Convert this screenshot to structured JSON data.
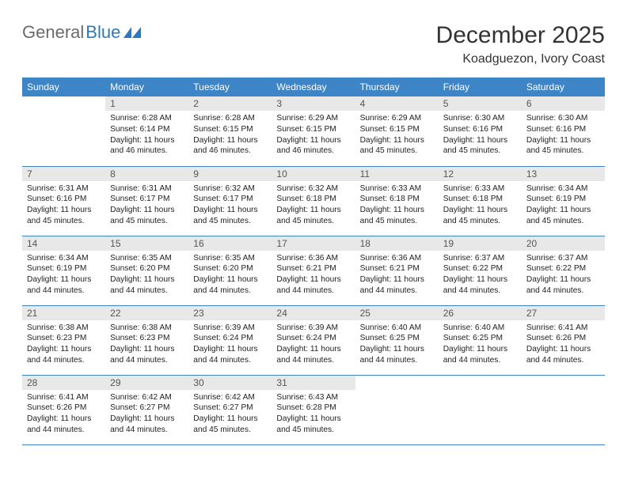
{
  "brand": {
    "a": "General",
    "b": "Blue"
  },
  "title": "December 2025",
  "location": "Koadguezon, Ivory Coast",
  "style": {
    "header_bg": "#3d85c6",
    "header_fg": "#ffffff",
    "daynum_bg": "#e8e8e8",
    "rule": "#3d85c6",
    "title_fontsize": 30,
    "subtitle_fontsize": 16,
    "th_fontsize": 12,
    "body_fontsize": 10.2
  },
  "weekdays": [
    "Sunday",
    "Monday",
    "Tuesday",
    "Wednesday",
    "Thursday",
    "Friday",
    "Saturday"
  ],
  "weeks": [
    [
      null,
      {
        "n": "1",
        "sr": "6:28 AM",
        "ss": "6:14 PM",
        "dl": "11 hours and 46 minutes."
      },
      {
        "n": "2",
        "sr": "6:28 AM",
        "ss": "6:15 PM",
        "dl": "11 hours and 46 minutes."
      },
      {
        "n": "3",
        "sr": "6:29 AM",
        "ss": "6:15 PM",
        "dl": "11 hours and 46 minutes."
      },
      {
        "n": "4",
        "sr": "6:29 AM",
        "ss": "6:15 PM",
        "dl": "11 hours and 45 minutes."
      },
      {
        "n": "5",
        "sr": "6:30 AM",
        "ss": "6:16 PM",
        "dl": "11 hours and 45 minutes."
      },
      {
        "n": "6",
        "sr": "6:30 AM",
        "ss": "6:16 PM",
        "dl": "11 hours and 45 minutes."
      }
    ],
    [
      {
        "n": "7",
        "sr": "6:31 AM",
        "ss": "6:16 PM",
        "dl": "11 hours and 45 minutes."
      },
      {
        "n": "8",
        "sr": "6:31 AM",
        "ss": "6:17 PM",
        "dl": "11 hours and 45 minutes."
      },
      {
        "n": "9",
        "sr": "6:32 AM",
        "ss": "6:17 PM",
        "dl": "11 hours and 45 minutes."
      },
      {
        "n": "10",
        "sr": "6:32 AM",
        "ss": "6:18 PM",
        "dl": "11 hours and 45 minutes."
      },
      {
        "n": "11",
        "sr": "6:33 AM",
        "ss": "6:18 PM",
        "dl": "11 hours and 45 minutes."
      },
      {
        "n": "12",
        "sr": "6:33 AM",
        "ss": "6:18 PM",
        "dl": "11 hours and 45 minutes."
      },
      {
        "n": "13",
        "sr": "6:34 AM",
        "ss": "6:19 PM",
        "dl": "11 hours and 45 minutes."
      }
    ],
    [
      {
        "n": "14",
        "sr": "6:34 AM",
        "ss": "6:19 PM",
        "dl": "11 hours and 44 minutes."
      },
      {
        "n": "15",
        "sr": "6:35 AM",
        "ss": "6:20 PM",
        "dl": "11 hours and 44 minutes."
      },
      {
        "n": "16",
        "sr": "6:35 AM",
        "ss": "6:20 PM",
        "dl": "11 hours and 44 minutes."
      },
      {
        "n": "17",
        "sr": "6:36 AM",
        "ss": "6:21 PM",
        "dl": "11 hours and 44 minutes."
      },
      {
        "n": "18",
        "sr": "6:36 AM",
        "ss": "6:21 PM",
        "dl": "11 hours and 44 minutes."
      },
      {
        "n": "19",
        "sr": "6:37 AM",
        "ss": "6:22 PM",
        "dl": "11 hours and 44 minutes."
      },
      {
        "n": "20",
        "sr": "6:37 AM",
        "ss": "6:22 PM",
        "dl": "11 hours and 44 minutes."
      }
    ],
    [
      {
        "n": "21",
        "sr": "6:38 AM",
        "ss": "6:23 PM",
        "dl": "11 hours and 44 minutes."
      },
      {
        "n": "22",
        "sr": "6:38 AM",
        "ss": "6:23 PM",
        "dl": "11 hours and 44 minutes."
      },
      {
        "n": "23",
        "sr": "6:39 AM",
        "ss": "6:24 PM",
        "dl": "11 hours and 44 minutes."
      },
      {
        "n": "24",
        "sr": "6:39 AM",
        "ss": "6:24 PM",
        "dl": "11 hours and 44 minutes."
      },
      {
        "n": "25",
        "sr": "6:40 AM",
        "ss": "6:25 PM",
        "dl": "11 hours and 44 minutes."
      },
      {
        "n": "26",
        "sr": "6:40 AM",
        "ss": "6:25 PM",
        "dl": "11 hours and 44 minutes."
      },
      {
        "n": "27",
        "sr": "6:41 AM",
        "ss": "6:26 PM",
        "dl": "11 hours and 44 minutes."
      }
    ],
    [
      {
        "n": "28",
        "sr": "6:41 AM",
        "ss": "6:26 PM",
        "dl": "11 hours and 44 minutes."
      },
      {
        "n": "29",
        "sr": "6:42 AM",
        "ss": "6:27 PM",
        "dl": "11 hours and 44 minutes."
      },
      {
        "n": "30",
        "sr": "6:42 AM",
        "ss": "6:27 PM",
        "dl": "11 hours and 45 minutes."
      },
      {
        "n": "31",
        "sr": "6:43 AM",
        "ss": "6:28 PM",
        "dl": "11 hours and 45 minutes."
      },
      null,
      null,
      null
    ]
  ],
  "labels": {
    "sunrise": "Sunrise:",
    "sunset": "Sunset:",
    "daylight": "Daylight:"
  }
}
